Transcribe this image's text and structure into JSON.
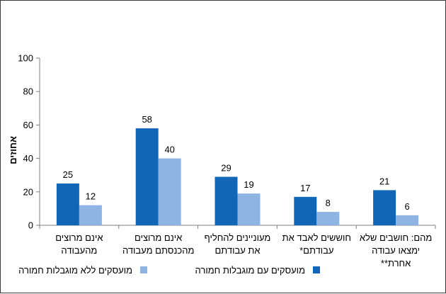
{
  "chart_data": {
    "type": "bar",
    "ylabel": "אחוזים",
    "ylim": [
      0,
      100
    ],
    "yticks": [
      0,
      20,
      40,
      60,
      80,
      100
    ],
    "grid": false,
    "legend_position": "bottom",
    "categories": [
      [
        "אינם מרוצים",
        "מהעבודה"
      ],
      [
        "אינם מרוצים",
        "מהכנסתם מעבודה"
      ],
      [
        "מעוניינים להחליף",
        "את עבודתם"
      ],
      [
        "חוששים לאבד את",
        "עבודתם*"
      ],
      [
        "מהם: חושבים שלא",
        "ימצאו עבודה",
        "אחרת**"
      ]
    ],
    "series": [
      {
        "name": "מועסקים עם מוגבלות חמורה",
        "color": "#1266b7",
        "values": [
          25,
          58,
          29,
          17,
          21
        ]
      },
      {
        "name": "מועסקים ללא מוגבלות חמורה",
        "color": "#8db4e2",
        "values": [
          12,
          40,
          19,
          8,
          6
        ]
      }
    ]
  }
}
